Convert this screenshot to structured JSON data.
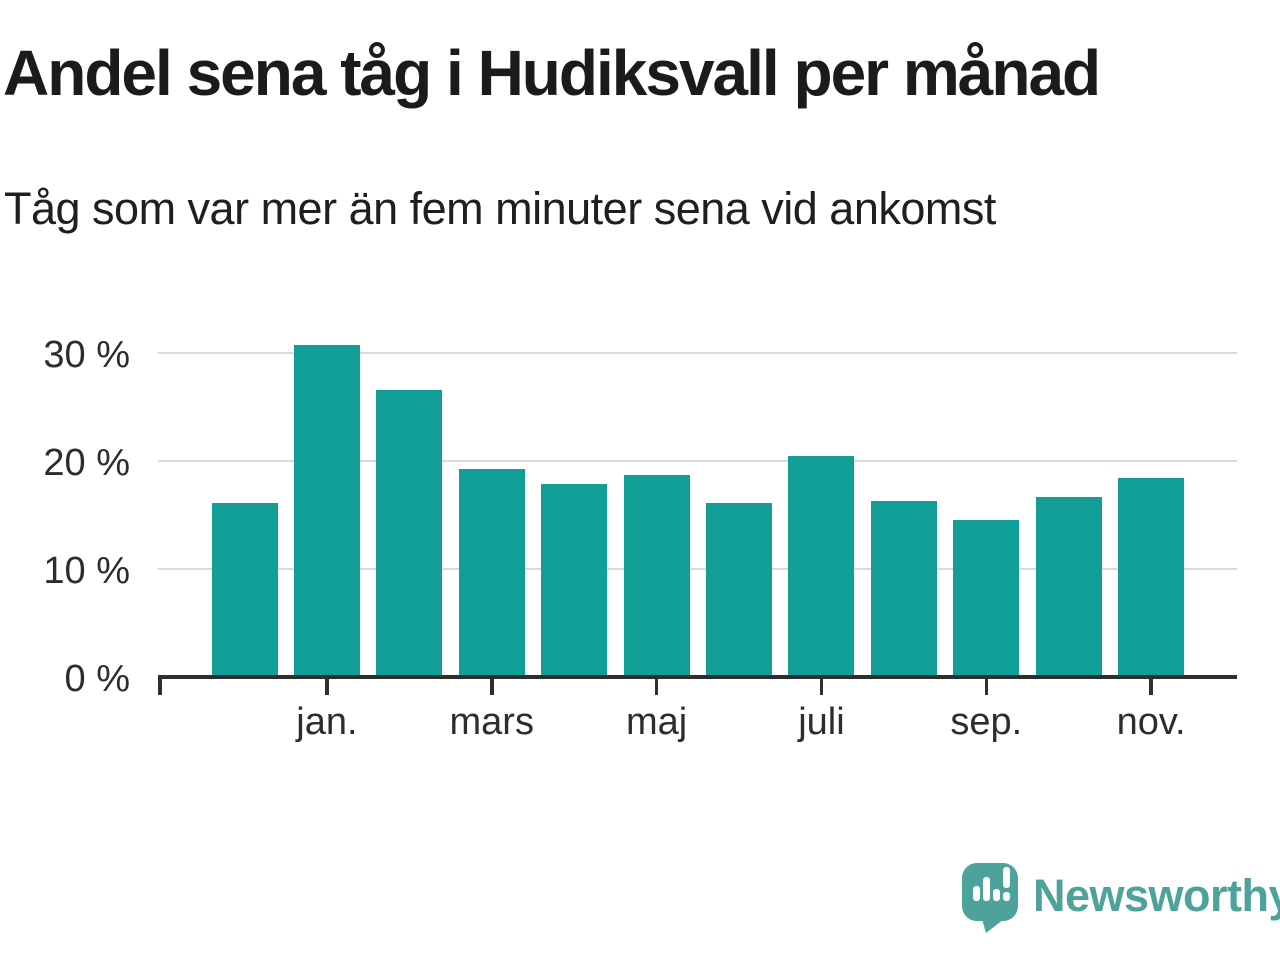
{
  "header": {
    "title": "Andel sena tåg i Hudiksvall per månad",
    "subtitle": "Tåg som var mer än fem minuter sena vid ankomst"
  },
  "chart_data": {
    "type": "bar",
    "title": "Andel sena tåg i Hudiksvall per månad",
    "subtitle": "Tåg som var mer än fem minuter sena vid ankomst",
    "unit": "%",
    "categories": [
      "",
      "jan.",
      "",
      "mars",
      "",
      "maj",
      "",
      "juli",
      "",
      "sep.",
      "",
      "nov."
    ],
    "values": [
      16.1,
      30.7,
      26.6,
      19.3,
      17.9,
      18.7,
      16.1,
      20.5,
      16.3,
      14.5,
      16.7,
      18.4
    ],
    "x_tick_labels": [
      "jan.",
      "mars",
      "maj",
      "juli",
      "sep.",
      "nov."
    ],
    "y_tick_labels": [
      "30 %",
      "20 %",
      "10 %",
      "0 %"
    ],
    "y_ticks": [
      30,
      20,
      10,
      0
    ],
    "ylim": [
      0,
      32
    ],
    "grid": "horizontal-only",
    "legend": "none"
  },
  "footer": {
    "brand": "Newsworthy"
  },
  "colors": {
    "bar": "#109e97",
    "logo": "#4da39b",
    "grid": "#d9d9d9",
    "axis": "#2e2e2e",
    "text": "#1b1b1b",
    "tick_text": "#2d2d2d",
    "background": "#ffffff"
  }
}
